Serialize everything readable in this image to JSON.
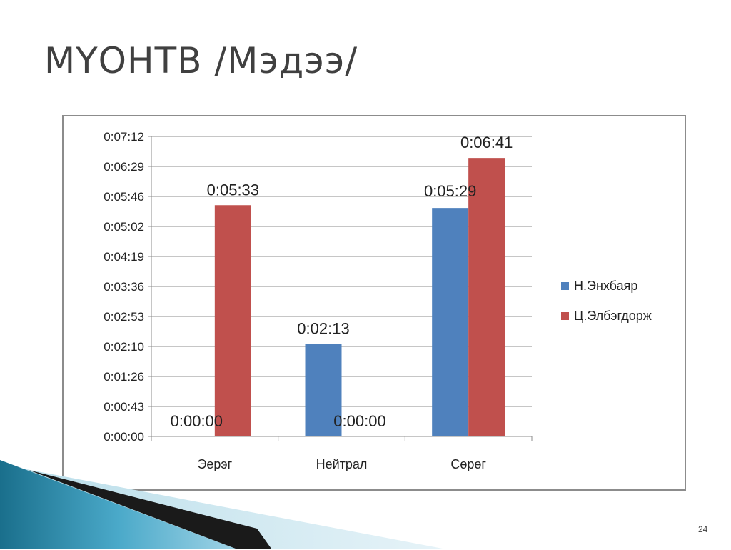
{
  "slide": {
    "title": "МҮОНТВ /Мэдээ/",
    "page_number": "24"
  },
  "chart_data": {
    "type": "bar",
    "title": "",
    "xlabel": "",
    "ylabel": "",
    "categories": [
      "Эерэг",
      "Нейтрал",
      "Сөрөг"
    ],
    "y_ticks": [
      "0:00:00",
      "0:00:43",
      "0:01:26",
      "0:02:10",
      "0:02:53",
      "0:03:36",
      "0:04:19",
      "0:05:02",
      "0:05:46",
      "0:06:29",
      "0:07:12"
    ],
    "ylim_seconds": [
      0,
      432
    ],
    "grid": true,
    "legend_position": "right",
    "series": [
      {
        "name": "Н.Энхбаяр",
        "color": "#4f81bd",
        "values_seconds": [
          0,
          133,
          329
        ],
        "labels": [
          "0:00:00",
          "0:02:13",
          "0:05:29"
        ]
      },
      {
        "name": "Ц.Элбэгдорж",
        "color": "#c0504d",
        "values_seconds": [
          333,
          0,
          401
        ],
        "labels": [
          "0:05:33",
          "0:00:00",
          "0:06:41"
        ]
      }
    ]
  }
}
